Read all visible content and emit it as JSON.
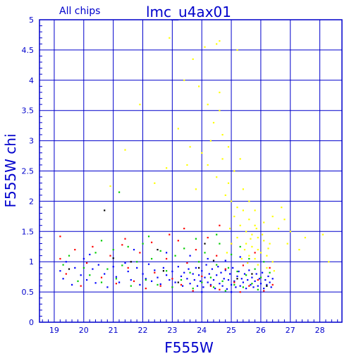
{
  "chart_data": {
    "type": "scatter",
    "title": "lmc_u4ax01",
    "subtitle": "All chips",
    "xlabel": "F555W",
    "ylabel": "F555W chi",
    "xlim": [
      18.5,
      28.75
    ],
    "ylim": [
      0,
      5
    ],
    "x_ticks": [
      19,
      20,
      21,
      22,
      23,
      24,
      25,
      26,
      27,
      28
    ],
    "y_ticks": [
      0,
      0.5,
      1,
      1.5,
      2,
      2.5,
      3,
      3.5,
      4,
      4.5,
      5
    ],
    "grid": true,
    "colors": {
      "axis": "#0000cc",
      "grid": "#0000cc",
      "blue": "#0000ff",
      "green": "#00cc00",
      "red": "#ff0000",
      "black": "#000000",
      "yellow": "#ffff00"
    },
    "series": [
      {
        "color": "blue",
        "points": [
          [
            19.2,
            0.85
          ],
          [
            19.3,
            0.72
          ],
          [
            19.4,
            1.0
          ],
          [
            19.6,
            0.62
          ],
          [
            19.7,
            0.9
          ],
          [
            19.9,
            0.78
          ],
          [
            20.0,
            1.05
          ],
          [
            20.1,
            0.7
          ],
          [
            20.3,
            0.88
          ],
          [
            20.4,
            0.65
          ],
          [
            20.5,
            0.95
          ],
          [
            20.7,
            0.8
          ],
          [
            20.8,
            0.58
          ],
          [
            21.0,
            0.92
          ],
          [
            21.1,
            0.75
          ],
          [
            21.2,
            0.66
          ],
          [
            21.4,
            0.98
          ],
          [
            21.5,
            0.84
          ],
          [
            21.6,
            0.7
          ],
          [
            21.8,
            0.9
          ],
          [
            21.9,
            0.62
          ],
          [
            22.0,
            0.8
          ],
          [
            22.1,
            0.72
          ],
          [
            22.2,
            0.96
          ],
          [
            22.3,
            0.68
          ],
          [
            22.4,
            0.86
          ],
          [
            22.5,
            0.74
          ],
          [
            22.6,
            0.63
          ],
          [
            22.7,
            0.9
          ],
          [
            22.8,
            0.78
          ],
          [
            22.9,
            0.7
          ],
          [
            23.0,
            0.84
          ],
          [
            23.1,
            0.66
          ],
          [
            23.2,
            0.92
          ],
          [
            23.3,
            0.76
          ],
          [
            23.35,
            0.6
          ],
          [
            23.4,
            0.82
          ],
          [
            23.5,
            0.72
          ],
          [
            23.55,
            0.88
          ],
          [
            23.6,
            0.64
          ],
          [
            23.7,
            0.8
          ],
          [
            23.75,
            0.7
          ],
          [
            23.8,
            0.9
          ],
          [
            23.85,
            0.6
          ],
          [
            23.9,
            0.78
          ],
          [
            23.95,
            0.68
          ],
          [
            24.0,
            0.85
          ],
          [
            24.05,
            0.58
          ],
          [
            24.1,
            0.74
          ],
          [
            24.15,
            0.95
          ],
          [
            24.2,
            0.66
          ],
          [
            24.25,
            0.8
          ],
          [
            24.3,
            0.62
          ],
          [
            24.35,
            0.88
          ],
          [
            24.4,
            0.7
          ],
          [
            24.45,
            0.56
          ],
          [
            24.5,
            0.78
          ],
          [
            24.55,
            0.92
          ],
          [
            24.6,
            0.64
          ],
          [
            24.65,
            0.82
          ],
          [
            24.7,
            0.6
          ],
          [
            24.75,
            0.72
          ],
          [
            24.8,
            0.86
          ],
          [
            24.85,
            0.55
          ],
          [
            24.9,
            0.7
          ],
          [
            24.95,
            0.8
          ],
          [
            25.0,
            0.62
          ],
          [
            25.05,
            0.9
          ],
          [
            25.1,
            0.68
          ],
          [
            25.15,
            0.58
          ],
          [
            25.2,
            0.76
          ],
          [
            25.25,
            0.84
          ],
          [
            25.3,
            0.6
          ],
          [
            25.35,
            0.72
          ],
          [
            25.4,
            0.66
          ],
          [
            25.45,
            0.8
          ],
          [
            25.5,
            0.56
          ],
          [
            25.55,
            0.7
          ],
          [
            25.6,
            0.86
          ],
          [
            25.65,
            0.62
          ],
          [
            25.7,
            0.74
          ],
          [
            25.75,
            0.58
          ],
          [
            25.8,
            0.68
          ],
          [
            25.85,
            0.8
          ],
          [
            25.9,
            0.6
          ],
          [
            25.95,
            0.72
          ],
          [
            26.0,
            0.64
          ],
          [
            26.05,
            0.82
          ],
          [
            26.1,
            0.56
          ],
          [
            26.15,
            0.7
          ],
          [
            26.2,
            0.62
          ],
          [
            26.25,
            0.76
          ],
          [
            26.3,
            0.66
          ],
          [
            26.35,
            0.58
          ],
          [
            26.4,
            0.72
          ],
          [
            20.2,
            1.12
          ],
          [
            23.6,
            1.1
          ],
          [
            24.2,
            1.05
          ],
          [
            24.8,
            1.02
          ],
          [
            25.3,
            1.08
          ],
          [
            22.8,
            1.15
          ],
          [
            21.7,
            1.2
          ],
          [
            24.0,
            0.5
          ],
          [
            25.0,
            0.5
          ]
        ]
      },
      {
        "color": "green",
        "points": [
          [
            19.3,
            0.95
          ],
          [
            19.5,
            1.1
          ],
          [
            19.8,
            0.68
          ],
          [
            20.0,
            0.9
          ],
          [
            20.2,
            0.78
          ],
          [
            20.4,
            1.15
          ],
          [
            20.6,
            0.66
          ],
          [
            20.8,
            0.88
          ],
          [
            21.0,
            1.2
          ],
          [
            21.1,
            0.72
          ],
          [
            21.3,
            0.94
          ],
          [
            21.5,
            1.25
          ],
          [
            21.6,
            0.6
          ],
          [
            21.8,
            1.0
          ],
          [
            22.0,
            1.3
          ],
          [
            22.1,
            0.7
          ],
          [
            22.3,
            1.05
          ],
          [
            22.5,
            0.62
          ],
          [
            22.6,
            1.18
          ],
          [
            22.8,
            0.85
          ],
          [
            23.0,
            0.58
          ],
          [
            23.1,
            1.1
          ],
          [
            23.3,
            0.7
          ],
          [
            23.4,
            1.22
          ],
          [
            23.6,
            0.82
          ],
          [
            23.7,
            0.56
          ],
          [
            23.9,
            1.0
          ],
          [
            24.0,
            0.66
          ],
          [
            24.1,
            1.15
          ],
          [
            24.3,
            0.74
          ],
          [
            24.4,
            0.58
          ],
          [
            24.5,
            0.95
          ],
          [
            24.6,
            1.3
          ],
          [
            24.7,
            0.68
          ],
          [
            24.8,
            0.52
          ],
          [
            24.9,
            0.9
          ],
          [
            25.0,
            1.12
          ],
          [
            25.1,
            0.62
          ],
          [
            25.2,
            0.84
          ],
          [
            25.3,
            1.25
          ],
          [
            25.4,
            0.58
          ],
          [
            25.5,
            0.78
          ],
          [
            25.6,
            1.05
          ],
          [
            25.7,
            0.64
          ],
          [
            25.8,
            0.88
          ],
          [
            25.9,
            0.54
          ],
          [
            26.0,
            0.74
          ],
          [
            26.1,
            1.0
          ],
          [
            26.2,
            0.6
          ],
          [
            26.3,
            0.82
          ],
          [
            20.6,
            1.35
          ],
          [
            21.2,
            2.15
          ],
          [
            22.2,
            1.42
          ],
          [
            23.8,
            1.38
          ],
          [
            24.5,
            1.45
          ]
        ]
      },
      {
        "color": "red",
        "points": [
          [
            19.2,
            1.05
          ],
          [
            19.4,
            0.8
          ],
          [
            19.7,
            1.2
          ],
          [
            19.9,
            0.6
          ],
          [
            20.1,
            0.98
          ],
          [
            20.3,
            1.25
          ],
          [
            20.6,
            0.74
          ],
          [
            20.9,
            1.1
          ],
          [
            21.1,
            0.64
          ],
          [
            21.3,
            1.28
          ],
          [
            21.5,
            0.9
          ],
          [
            21.7,
            0.68
          ],
          [
            21.9,
            1.15
          ],
          [
            22.1,
            0.56
          ],
          [
            22.3,
            1.32
          ],
          [
            22.4,
            0.82
          ],
          [
            22.6,
            0.6
          ],
          [
            22.8,
            1.05
          ],
          [
            23.0,
            0.72
          ],
          [
            23.2,
            1.35
          ],
          [
            23.3,
            0.62
          ],
          [
            23.5,
            0.98
          ],
          [
            23.7,
            0.52
          ],
          [
            23.8,
            1.2
          ],
          [
            24.0,
            0.76
          ],
          [
            24.2,
            1.4
          ],
          [
            24.3,
            0.6
          ],
          [
            24.5,
            1.1
          ],
          [
            24.6,
            0.54
          ],
          [
            24.8,
            0.88
          ],
          [
            25.0,
            1.3
          ],
          [
            25.1,
            0.66
          ],
          [
            25.3,
            0.5
          ],
          [
            25.4,
            0.94
          ],
          [
            25.6,
            0.6
          ],
          [
            25.8,
            1.15
          ],
          [
            25.9,
            0.7
          ],
          [
            26.1,
            0.52
          ],
          [
            26.3,
            0.9
          ],
          [
            26.4,
            0.62
          ],
          [
            23.4,
            1.55
          ],
          [
            24.6,
            1.6
          ],
          [
            21.4,
            1.38
          ],
          [
            22.9,
            1.45
          ],
          [
            19.2,
            1.42
          ]
        ]
      },
      {
        "color": "black",
        "points": [
          [
            19.5,
            0.88
          ],
          [
            20.7,
            1.85
          ],
          [
            21.6,
            1.0
          ],
          [
            22.5,
            1.2
          ],
          [
            23.2,
            0.66
          ],
          [
            23.9,
            0.9
          ],
          [
            24.4,
            1.02
          ],
          [
            25.2,
            0.72
          ],
          [
            25.7,
            0.8
          ],
          [
            26.2,
            0.6
          ],
          [
            24.1,
            1.3
          ],
          [
            22.7,
            0.85
          ],
          [
            21.0,
            1.06
          ]
        ]
      },
      {
        "color": "yellow",
        "points": [
          [
            22.9,
            4.7
          ],
          [
            23.7,
            4.35
          ],
          [
            24.1,
            4.55
          ],
          [
            24.5,
            4.6
          ],
          [
            24.6,
            4.65
          ],
          [
            25.2,
            4.5
          ],
          [
            23.4,
            4.0
          ],
          [
            23.9,
            3.9
          ],
          [
            24.2,
            3.6
          ],
          [
            24.4,
            3.3
          ],
          [
            24.6,
            3.5
          ],
          [
            24.3,
            3.0
          ],
          [
            24.0,
            2.8
          ],
          [
            24.7,
            2.7
          ],
          [
            24.5,
            2.4
          ],
          [
            24.9,
            2.3
          ],
          [
            24.8,
            2.1
          ],
          [
            25.0,
            2.0
          ],
          [
            25.2,
            1.9
          ],
          [
            25.4,
            1.85
          ],
          [
            25.6,
            1.7
          ],
          [
            25.8,
            1.6
          ],
          [
            25.5,
            1.5
          ],
          [
            25.7,
            1.45
          ],
          [
            25.9,
            1.4
          ],
          [
            26.1,
            1.35
          ],
          [
            26.3,
            1.3
          ],
          [
            25.3,
            1.6
          ],
          [
            25.1,
            1.75
          ],
          [
            24.95,
            1.55
          ],
          [
            25.5,
            1.3
          ],
          [
            25.7,
            1.25
          ],
          [
            25.9,
            1.2
          ],
          [
            26.0,
            1.15
          ],
          [
            26.2,
            1.1
          ],
          [
            25.6,
            1.1
          ],
          [
            25.8,
            1.05
          ],
          [
            26.4,
            1.0
          ],
          [
            26.6,
            1.55
          ],
          [
            26.8,
            1.7
          ],
          [
            27.0,
            1.5
          ],
          [
            27.3,
            1.2
          ],
          [
            27.5,
            1.4
          ],
          [
            28.1,
            1.45
          ],
          [
            28.3,
            1.0
          ],
          [
            26.7,
            1.9
          ],
          [
            26.9,
            1.3
          ],
          [
            25.4,
            2.2
          ],
          [
            25.6,
            2.0
          ],
          [
            25.1,
            2.5
          ],
          [
            24.9,
            2.9
          ],
          [
            24.7,
            3.1
          ],
          [
            24.6,
            3.8
          ],
          [
            23.8,
            2.2
          ],
          [
            23.5,
            2.6
          ],
          [
            22.8,
            2.55
          ],
          [
            22.4,
            2.3
          ],
          [
            21.9,
            3.6
          ],
          [
            21.4,
            2.85
          ],
          [
            20.9,
            2.25
          ],
          [
            23.2,
            3.2
          ],
          [
            23.6,
            2.9
          ],
          [
            24.2,
            2.6
          ],
          [
            25.3,
            2.7
          ],
          [
            25.8,
            1.85
          ],
          [
            26.1,
            1.65
          ],
          [
            26.4,
            1.75
          ],
          [
            25.2,
            1.4
          ],
          [
            25.0,
            1.3
          ],
          [
            25.9,
            0.95
          ],
          [
            26.2,
            0.9
          ],
          [
            25.45,
            1.2
          ],
          [
            25.65,
            1.38
          ],
          [
            25.85,
            1.55
          ],
          [
            26.05,
            1.45
          ],
          [
            26.25,
            1.22
          ],
          [
            25.35,
            1.05
          ],
          [
            24.85,
            1.15
          ],
          [
            25.55,
            0.98
          ],
          [
            26.45,
            0.85
          ]
        ]
      }
    ]
  }
}
